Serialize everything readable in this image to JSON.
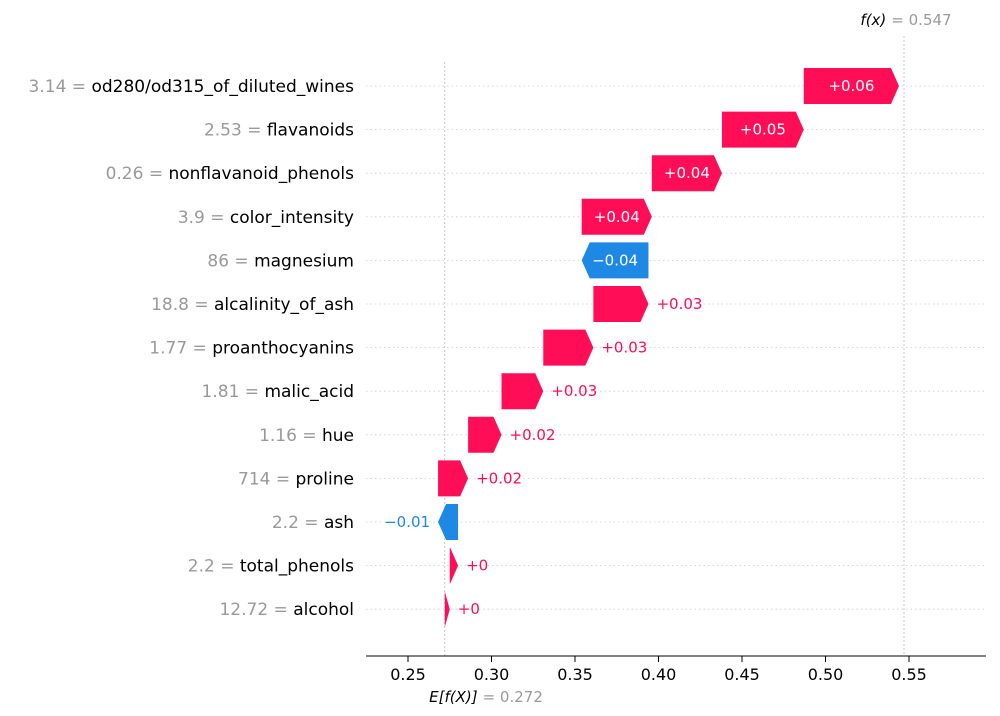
{
  "chart_data": {
    "type": "waterfall",
    "base_value": 0.272,
    "output_value": 0.547,
    "expected_label": "E[f(X)]",
    "expected_value_text": "= 0.272",
    "output_label": "f(x)",
    "output_value_text": "= 0.547",
    "xlim": [
      0.223,
      0.592
    ],
    "xticks": [
      "0.25",
      "0.30",
      "0.35",
      "0.40",
      "0.45",
      "0.50",
      "0.55"
    ],
    "colors": {
      "positive": "#ff0d57",
      "negative": "#1e88e5",
      "grid": "#cccccc",
      "axis": "#000000",
      "muted": "#999999"
    },
    "features": [
      {
        "value": "3.14",
        "name": "od280/od315_of_diluted_wines",
        "contribution": 0.057,
        "label": "+0.06"
      },
      {
        "value": "2.53",
        "name": "flavanoids",
        "contribution": 0.049,
        "label": "+0.05"
      },
      {
        "value": "0.26",
        "name": "nonflavanoid_phenols",
        "contribution": 0.042,
        "label": "+0.04"
      },
      {
        "value": "3.9",
        "name": "color_intensity",
        "contribution": 0.042,
        "label": "+0.04"
      },
      {
        "value": "86",
        "name": "magnesium",
        "contribution": -0.04,
        "label": "−0.04"
      },
      {
        "value": "18.8",
        "name": "alcalinity_of_ash",
        "contribution": 0.033,
        "label": "+0.03"
      },
      {
        "value": "1.77",
        "name": "proanthocyanins",
        "contribution": 0.03,
        "label": "+0.03"
      },
      {
        "value": "1.81",
        "name": "malic_acid",
        "contribution": 0.025,
        "label": "+0.03"
      },
      {
        "value": "1.16",
        "name": "hue",
        "contribution": 0.02,
        "label": "+0.02"
      },
      {
        "value": "714",
        "name": "proline",
        "contribution": 0.018,
        "label": "+0.02"
      },
      {
        "value": "2.2",
        "name": "ash",
        "contribution": -0.012,
        "label": "−0.01"
      },
      {
        "value": "2.2",
        "name": "total_phenols",
        "contribution": 0.005,
        "label": "+0"
      },
      {
        "value": "12.72",
        "name": "alcohol",
        "contribution": 0.003,
        "label": "+0"
      }
    ]
  }
}
